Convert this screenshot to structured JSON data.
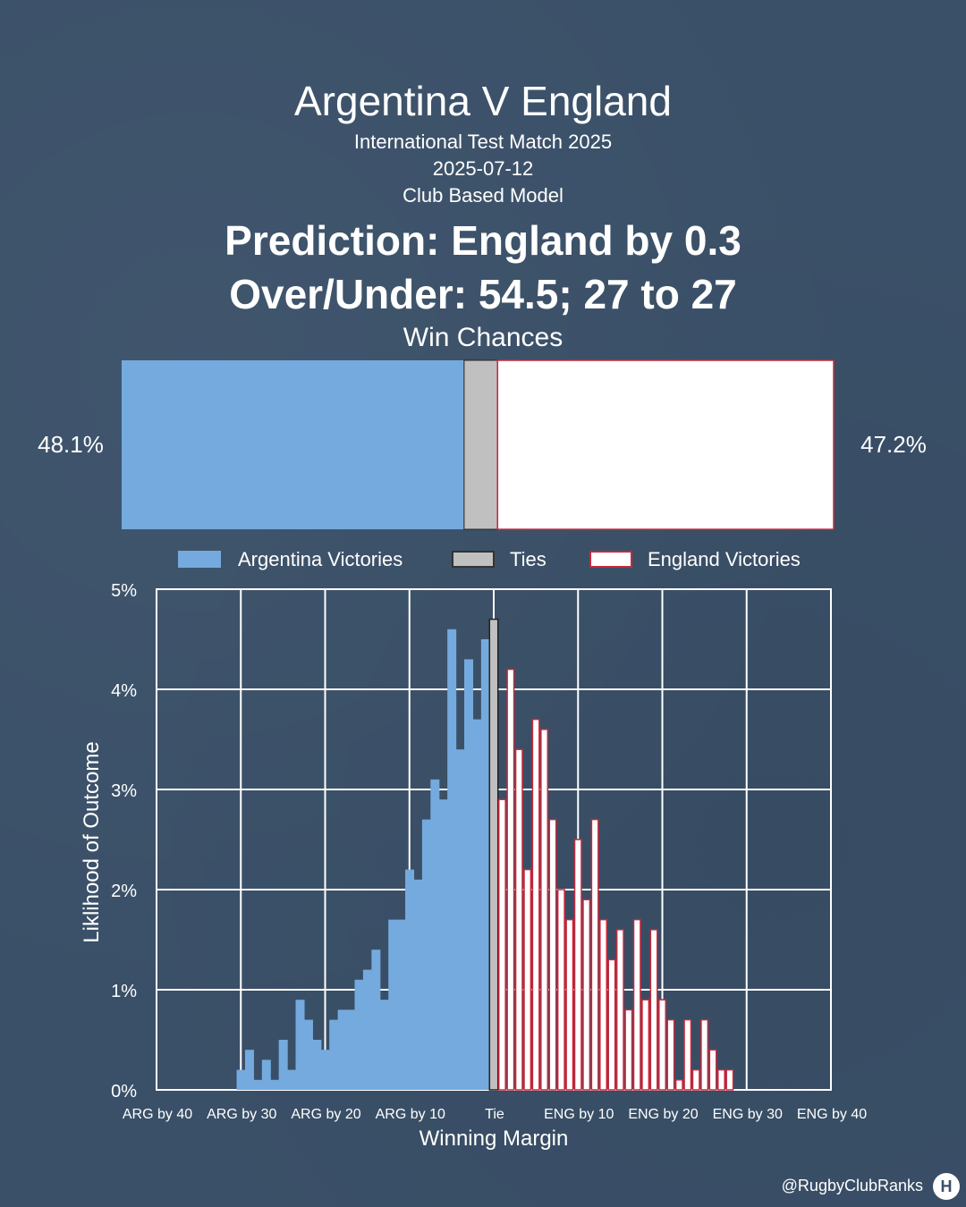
{
  "header": {
    "title": "Argentina V England",
    "competition": "International Test Match 2025",
    "date": "2025-07-12",
    "model": "Club Based Model",
    "prediction": "Prediction: England by 0.3",
    "over_under": "Over/Under: 54.5; 27 to 27",
    "win_chances_title": "Win Chances"
  },
  "win_chances": {
    "home_pct_label": "48.1%",
    "away_pct_label": "47.2%",
    "home": 48.1,
    "tie": 4.7,
    "away": 47.2
  },
  "legend": [
    "Argentina Victories",
    "Ties",
    "England Victories"
  ],
  "colors": {
    "background": "#3a5068",
    "argentina": "#74aade",
    "tie": "#c0c0c0",
    "england_fill": "#ffffff",
    "england_edge": "#c8283c"
  },
  "chart_data": {
    "type": "bar",
    "xlabel": "Winning Margin",
    "ylabel": "Liklihood of Outcome",
    "x_ticks": [
      {
        "label": "ARG by 40",
        "value": -40
      },
      {
        "label": "ARG by 30",
        "value": -30
      },
      {
        "label": "ARG by 20",
        "value": -20
      },
      {
        "label": "ARG by 10",
        "value": -10
      },
      {
        "label": "Tie",
        "value": 0
      },
      {
        "label": "ENG by 10",
        "value": 10
      },
      {
        "label": "ENG by 20",
        "value": 20
      },
      {
        "label": "ENG by 30",
        "value": 30
      },
      {
        "label": "ENG by 40",
        "value": 40
      }
    ],
    "y_ticks": [
      "0%",
      "1%",
      "2%",
      "3%",
      "4%",
      "5%"
    ],
    "ylim": [
      0,
      5
    ],
    "xlim": [
      -40,
      40
    ],
    "grid": true,
    "series": [
      {
        "name": "Argentina Victories",
        "x": [
          -30,
          -29,
          -28,
          -27,
          -26,
          -25,
          -24,
          -23,
          -22,
          -21,
          -20,
          -19,
          -18,
          -17,
          -16,
          -15,
          -14,
          -13,
          -12,
          -11,
          -10,
          -9,
          -8,
          -7,
          -6,
          -5,
          -4,
          -3,
          -2,
          -1
        ],
        "values": [
          0.2,
          0.4,
          0.1,
          0.3,
          0.1,
          0.5,
          0.2,
          0.9,
          0.7,
          0.5,
          0.4,
          0.7,
          0.8,
          0.8,
          1.1,
          1.2,
          1.4,
          0.9,
          1.7,
          1.7,
          2.2,
          2.1,
          2.7,
          3.1,
          2.9,
          4.6,
          3.4,
          4.3,
          3.7,
          4.5
        ]
      },
      {
        "name": "Ties",
        "x": [
          0
        ],
        "values": [
          4.7
        ]
      },
      {
        "name": "England Victories",
        "x": [
          1,
          2,
          3,
          4,
          5,
          6,
          7,
          8,
          9,
          10,
          11,
          12,
          13,
          14,
          15,
          16,
          17,
          18,
          19,
          20,
          21,
          22,
          23,
          24,
          25,
          26,
          27,
          28
        ],
        "values": [
          2.9,
          4.2,
          3.4,
          2.2,
          3.7,
          3.6,
          2.7,
          2.0,
          1.7,
          2.5,
          1.9,
          2.7,
          1.7,
          1.3,
          1.6,
          0.8,
          1.7,
          0.9,
          1.6,
          0.9,
          0.7,
          0.1,
          0.7,
          0.2,
          0.7,
          0.4,
          0.2,
          0.2
        ]
      }
    ]
  },
  "footer": {
    "watermark": "@RugbyClubRanks",
    "logo_text": "H"
  }
}
